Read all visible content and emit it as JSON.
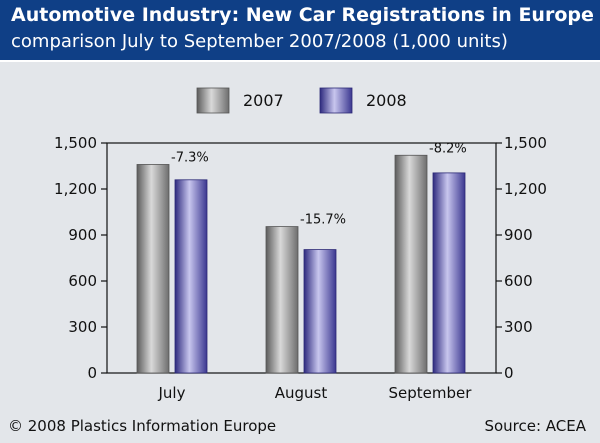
{
  "header": {
    "title": "Automotive Industry: New Car Registrations in Europe",
    "subtitle": "comparison July to September 2007/2008 (1,000 units)"
  },
  "footer": {
    "copyright": "© 2008 Plastics Information Europe",
    "source": "Source: ACEA"
  },
  "colors": {
    "header_bg": "#0f3f86",
    "background": "#e3e6ea",
    "series_2007": "#8c8c8c",
    "series_2008": "#5a56a8"
  },
  "chart_data": {
    "type": "bar",
    "categories": [
      "July",
      "August",
      "September"
    ],
    "series": [
      {
        "name": "2007",
        "values": [
          1360,
          955,
          1420
        ]
      },
      {
        "name": "2008",
        "values": [
          1260,
          805,
          1305
        ]
      }
    ],
    "annotations": [
      "-7.3%",
      "-15.7%",
      "-8.2%"
    ],
    "ylim": [
      0,
      1500
    ],
    "yticks": [
      0,
      300,
      600,
      900,
      1200,
      1500
    ],
    "ytick_labels": [
      "0",
      "300",
      "600",
      "900",
      "1,200",
      "1,500"
    ],
    "secondary_y_axis": true,
    "legend": "top-center",
    "grid": false
  }
}
